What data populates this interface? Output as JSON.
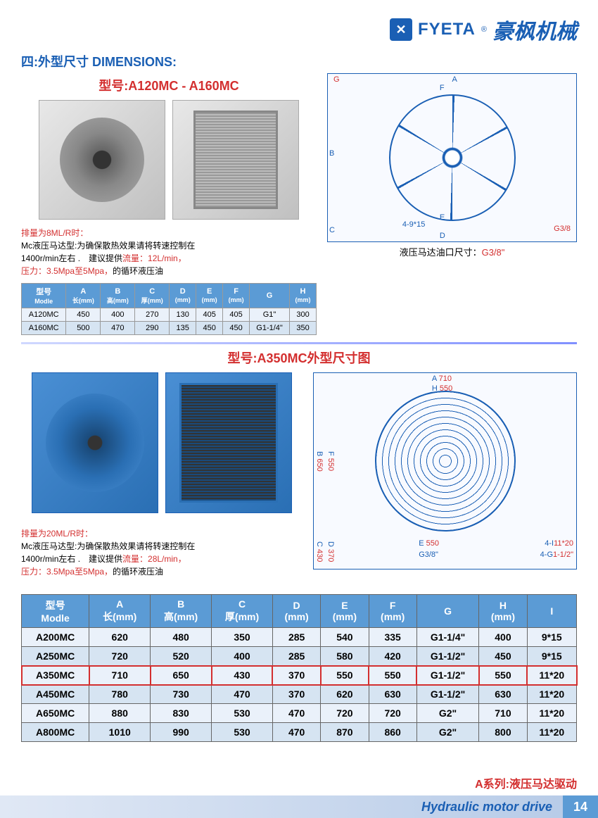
{
  "header": {
    "brand_en": "FYETA",
    "brand_reg": "®",
    "brand_cn": "豪枫机械"
  },
  "section_title": "四:外型尺寸 DIMENSIONS:",
  "model_title_1": "型号:A120MC - A160MC",
  "note1": {
    "line1": "排量为8ML/R时：",
    "line2a": "Mc液压马达型:为确保散热效果请将转速控制在",
    "line2b": "1400r/min左右 .　建议提供",
    "flow": "流量：12L/min，",
    "line3a": "压力：3.5Mpa至5Mpa，",
    "line3b": "的循环液压油"
  },
  "table1": {
    "headers": [
      "型号",
      "A",
      "B",
      "C",
      "D",
      "E",
      "F",
      "G",
      "H"
    ],
    "sub": [
      "Modle",
      "长(mm)",
      "高(mm)",
      "厚(mm)",
      "(mm)",
      "(mm)",
      "(mm)",
      "",
      "(mm)"
    ],
    "rows": [
      [
        "A120MC",
        "450",
        "400",
        "270",
        "130",
        "405",
        "405",
        "G1\"",
        "300"
      ],
      [
        "A160MC",
        "500",
        "470",
        "290",
        "135",
        "450",
        "450",
        "G1-1/4\"",
        "350"
      ]
    ]
  },
  "diagram1": {
    "caption_a": "液压马达油口尺寸：",
    "caption_b": "G3/8\"",
    "labels": {
      "G": "G",
      "A": "A",
      "F": "F",
      "B": "B",
      "E": "E",
      "C": "C",
      "D": "D",
      "port": "4-9*15",
      "g38": "G3/8"
    }
  },
  "model_title_2": "型号:A350MC外型尺寸图",
  "note2": {
    "line1": "排量为20ML/R时：",
    "line2a": "Mc液压马达型:为确保散热效果请将转速控制在",
    "line2b": "1400r/min左右 .　建议提供",
    "flow": "流量：28L/min，",
    "line3a": "压力：3.5Mpa至5Mpa，",
    "line3b": "的循环液压油"
  },
  "diagram2": {
    "labels": {
      "A": "A",
      "A_val": "710",
      "H": "H",
      "H_val": "550",
      "B": "B",
      "B_val": "650",
      "F": "F",
      "F_val": "550",
      "E": "E",
      "E_val": "550",
      "C": "C",
      "C_val": "430",
      "D": "D",
      "D_val": "370",
      "i1": "4-I",
      "i1_val": "11*20",
      "g1": "4-G",
      "g1_val": "1-1/2\"",
      "g38": "G3/8\""
    }
  },
  "table2": {
    "headers": [
      "型号",
      "A",
      "B",
      "C",
      "D",
      "E",
      "F",
      "G",
      "H",
      "I"
    ],
    "sub": [
      "Modle",
      "长(mm)",
      "高(mm)",
      "厚(mm)",
      "(mm)",
      "(mm)",
      "(mm)",
      "",
      "(mm)",
      ""
    ],
    "rows": [
      {
        "d": [
          "A200MC",
          "620",
          "480",
          "350",
          "285",
          "540",
          "335",
          "G1-1/4\"",
          "400",
          "9*15"
        ],
        "hl": false
      },
      {
        "d": [
          "A250MC",
          "720",
          "520",
          "400",
          "285",
          "580",
          "420",
          "G1-1/2\"",
          "450",
          "9*15"
        ],
        "hl": false
      },
      {
        "d": [
          "A350MC",
          "710",
          "650",
          "430",
          "370",
          "550",
          "550",
          "G1-1/2\"",
          "550",
          "11*20"
        ],
        "hl": true
      },
      {
        "d": [
          "A450MC",
          "780",
          "730",
          "470",
          "370",
          "620",
          "630",
          "G1-1/2\"",
          "630",
          "11*20"
        ],
        "hl": false
      },
      {
        "d": [
          "A650MC",
          "880",
          "830",
          "530",
          "470",
          "720",
          "720",
          "G2\"",
          "710",
          "11*20"
        ],
        "hl": false
      },
      {
        "d": [
          "A800MC",
          "1010",
          "990",
          "530",
          "470",
          "870",
          "860",
          "G2\"",
          "800",
          "11*20"
        ],
        "hl": false
      }
    ]
  },
  "footer": {
    "label": "A系列:液压马达驱动",
    "bar": "Hydraulic motor drive",
    "page": "14"
  }
}
